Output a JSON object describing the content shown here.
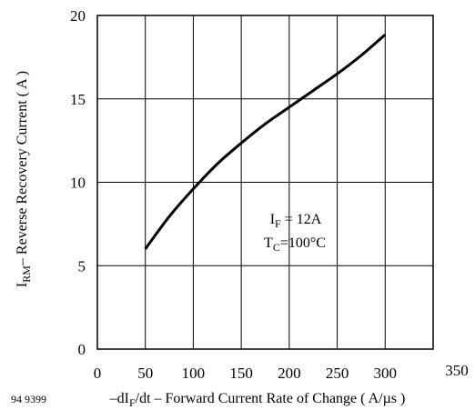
{
  "figure_code": "94 9399",
  "chart_data": {
    "type": "line",
    "xlabel": {
      "pre": "–dI",
      "sub": "F",
      "post": "/dt – Forward Current Rate of Change ( A/µs )"
    },
    "ylabel": {
      "pre": "I",
      "sub": "RM",
      "post": "– Reverse Recovery Current ( A )"
    },
    "xlim": [
      0,
      350
    ],
    "ylim": [
      0,
      20
    ],
    "xticks": [
      0,
      50,
      100,
      150,
      200,
      250,
      300,
      350
    ],
    "yticks": [
      0,
      5,
      10,
      15,
      20
    ],
    "grid": true,
    "series": [
      {
        "x": [
          50,
          75,
          100,
          125,
          150,
          175,
          200,
          225,
          250,
          275,
          300
        ],
        "y": [
          6.0,
          7.95,
          9.6,
          11.1,
          12.35,
          13.5,
          14.5,
          15.5,
          16.5,
          17.6,
          18.85
        ],
        "color": "#000000"
      }
    ],
    "annotations": [
      {
        "pre": "I",
        "sub": "F",
        "post": " = 12A"
      },
      {
        "pre": "T",
        "sub": "C",
        "post": "=100°C"
      }
    ]
  }
}
